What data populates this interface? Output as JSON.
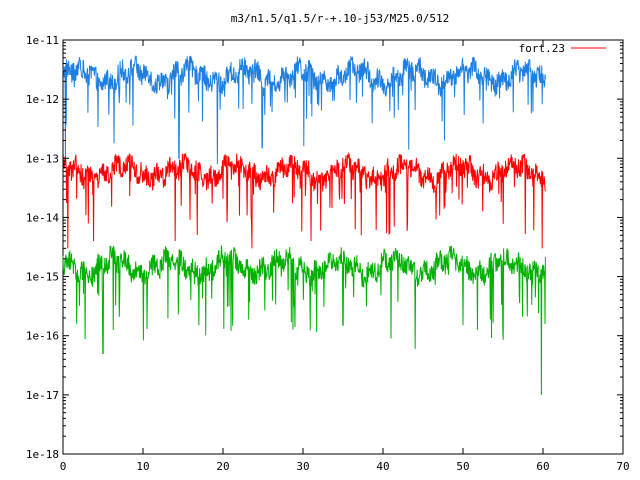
{
  "chart_data": {
    "type": "line",
    "title": "m3/n1.5/q1.5/r-+.10-j53/M25.0/512",
    "xlabel": "",
    "ylabel": "",
    "xlim": [
      0,
      70
    ],
    "ylim": [
      1e-18,
      1e-11
    ],
    "yscale": "log",
    "grid": false,
    "legend_position": "top-right",
    "x_ticks": [
      0,
      10,
      20,
      30,
      40,
      50,
      60,
      70
    ],
    "x_tick_labels": [
      "0",
      "10",
      "20",
      "30",
      "40",
      "50",
      "60",
      "70"
    ],
    "y_ticks": [
      1e-18,
      1e-17,
      1e-16,
      1e-15,
      1e-14,
      1e-13,
      1e-12,
      1e-11
    ],
    "y_tick_labels": [
      "1e-18",
      "1e-17",
      "1e-16",
      "1e-15",
      "1e-14",
      "1e-13",
      "1e-12",
      "1e-11"
    ],
    "series": [
      {
        "name": "",
        "color": "#1e7fe0",
        "x_range": [
          0,
          60.3
        ],
        "baseline": 2.5e-12,
        "typical_range": [
          8e-13,
          5.5e-12
        ],
        "deepest_dips": [
          {
            "x": 0.3,
            "y": 9e-14
          },
          {
            "x": 6.4,
            "y": 1.8e-13
          },
          {
            "x": 14.5,
            "y": 1e-13
          },
          {
            "x": 19.3,
            "y": 8e-14
          },
          {
            "x": 24.9,
            "y": 1.5e-13
          },
          {
            "x": 30.1,
            "y": 1.6e-13
          },
          {
            "x": 43.2,
            "y": 1.4e-13
          },
          {
            "x": 47.7,
            "y": 2e-13
          },
          {
            "x": 56.3,
            "y": 6e-13
          }
        ]
      },
      {
        "name": "fort.23",
        "color": "#ff0000",
        "x_range": [
          0,
          60.3
        ],
        "baseline": 6e-14,
        "typical_range": [
          1.5e-14,
          1.2e-13
        ],
        "deepest_dips": [
          {
            "x": 0.6,
            "y": 3e-15
          },
          {
            "x": 3.8,
            "y": 4e-15
          },
          {
            "x": 14.0,
            "y": 4e-15
          },
          {
            "x": 23.6,
            "y": 3e-15
          },
          {
            "x": 31.0,
            "y": 4e-15
          },
          {
            "x": 37.3,
            "y": 5e-15
          },
          {
            "x": 59.9,
            "y": 3e-15
          }
        ]
      },
      {
        "name": "",
        "color": "#00b000",
        "x_range": [
          0,
          60.3
        ],
        "baseline": 1.5e-15,
        "typical_range": [
          3e-16,
          4e-15
        ],
        "deepest_dips": [
          {
            "x": 5.0,
            "y": 5e-17
          },
          {
            "x": 10.5,
            "y": 1.3e-16
          },
          {
            "x": 17.0,
            "y": 1.5e-16
          },
          {
            "x": 21.0,
            "y": 1.2e-16
          },
          {
            "x": 29.0,
            "y": 1.4e-16
          },
          {
            "x": 35.0,
            "y": 1.5e-16
          },
          {
            "x": 41.0,
            "y": 9e-17
          },
          {
            "x": 44.0,
            "y": 6e-17
          },
          {
            "x": 50.0,
            "y": 1.5e-16
          },
          {
            "x": 55.0,
            "y": 1.2e-16
          },
          {
            "x": 59.8,
            "y": 1e-17
          }
        ]
      }
    ]
  }
}
